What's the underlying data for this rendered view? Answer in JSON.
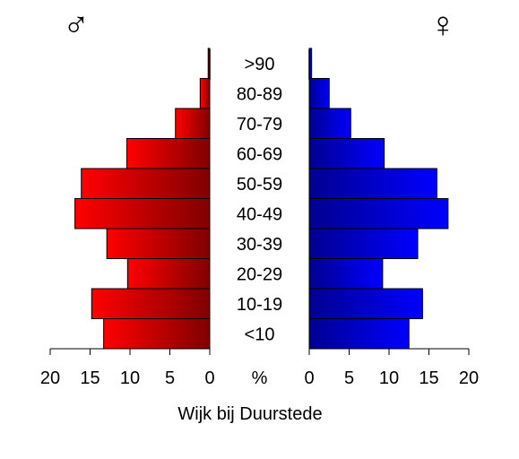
{
  "chart_data": {
    "type": "bar",
    "orientation": "horizontal-population-pyramid",
    "title": "Wijk bij Duurstede",
    "unit_label": "%",
    "male_symbol": "♂",
    "female_symbol": "♀",
    "categories": [
      "<10",
      "10-19",
      "20-29",
      "30-39",
      "40-49",
      "50-59",
      "60-69",
      "70-79",
      "80-89",
      ">90"
    ],
    "series": [
      {
        "symbol": "♂",
        "side": "left",
        "values": [
          13.3,
          14.8,
          10.3,
          12.9,
          16.9,
          16.1,
          10.4,
          4.3,
          1.2,
          0.2
        ],
        "gradient": [
          "#ff0000",
          "#800000"
        ]
      },
      {
        "symbol": "♀",
        "side": "right",
        "values": [
          12.5,
          14.2,
          9.2,
          13.6,
          17.4,
          16.0,
          9.4,
          5.2,
          2.5,
          0.3
        ],
        "gradient": [
          "#000090",
          "#0000ff"
        ]
      }
    ],
    "xlim": [
      0,
      20
    ],
    "ticks": [
      0,
      5,
      10,
      15,
      20
    ],
    "tick_labels_left": [
      "20",
      "15",
      "10",
      "5",
      "0"
    ],
    "tick_labels_right": [
      "0",
      "5",
      "10",
      "15",
      "20"
    ],
    "grid": false,
    "legend": "none"
  }
}
